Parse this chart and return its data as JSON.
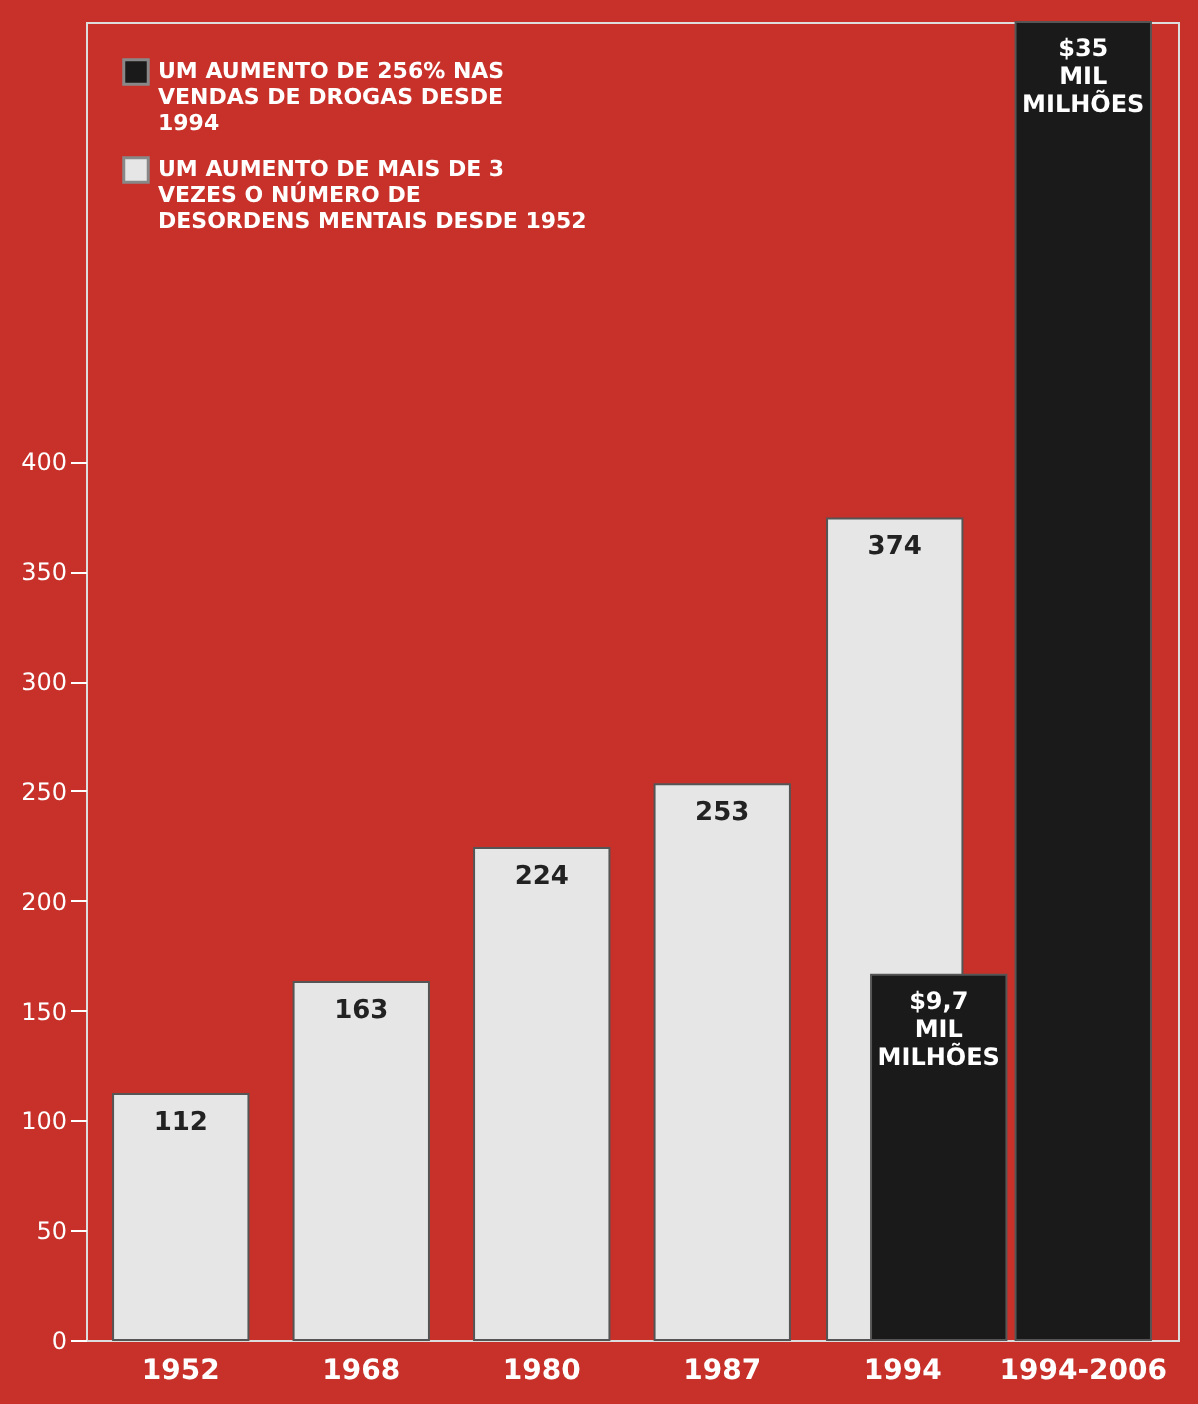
{
  "chart_data": {
    "type": "bar",
    "categories": [
      "1952",
      "1968",
      "1980",
      "1987",
      "1994",
      "1994-2006"
    ],
    "series": [
      {
        "name": "UM AUMENTO DE 256% NAS VENDAS DE DROGAS DESDE 1994",
        "color": "#1a1a1a",
        "axis": "y2",
        "values": [
          null,
          null,
          null,
          null,
          9.7,
          35
        ],
        "value_labels": [
          null,
          null,
          null,
          null,
          "$9,7 MIL MILHÕES",
          "$35 MIL MILHÕES"
        ]
      },
      {
        "name": "UM AUMENTO DE MAIS DE 3 VEZES O NÚMERO DE DESORDENS MENTAIS DESDE 1952",
        "color": "#e6e6e6",
        "values": [
          112,
          163,
          224,
          253,
          374,
          null
        ]
      }
    ],
    "data_labels": true,
    "ylim": [
      0,
      600
    ],
    "yticks": [
      0,
      50,
      100,
      150,
      200,
      250,
      300,
      350,
      400
    ],
    "legend": "top left"
  }
}
